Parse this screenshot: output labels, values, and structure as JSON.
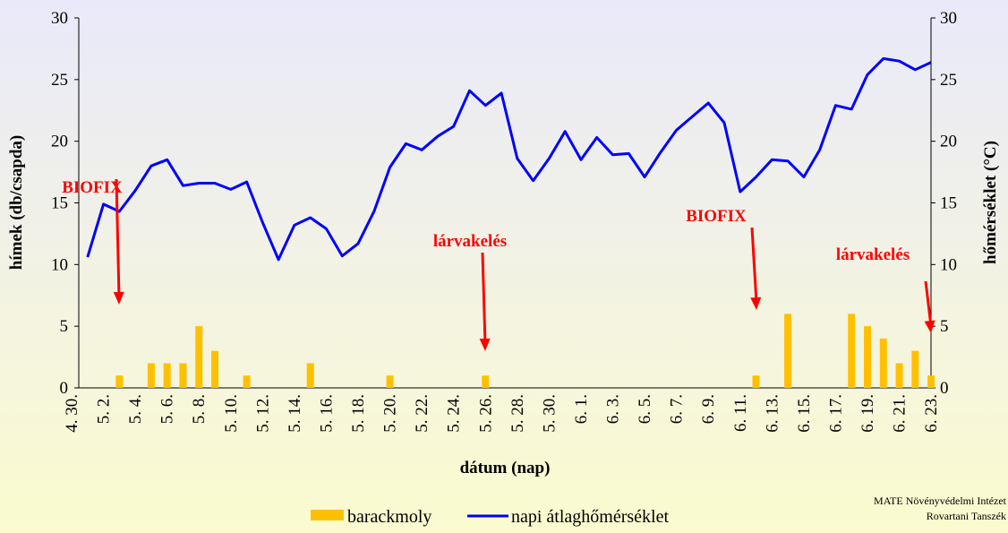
{
  "chart_data": {
    "type": "bar+line",
    "x_label": "dátum (nap)",
    "y_label": "hímek (db/csapda)",
    "y2_label": "hőmérséklet (°C)",
    "categories": [
      "4. 30.",
      null,
      "5. 2.",
      null,
      "5. 4.",
      null,
      "5. 6.",
      null,
      "5. 8.",
      null,
      "5. 10.",
      null,
      "5. 12.",
      null,
      "5. 14.",
      null,
      "5. 16.",
      null,
      "5. 18.",
      null,
      "5. 20.",
      null,
      "5. 22.",
      null,
      "5. 24.",
      null,
      "5. 26.",
      null,
      "5. 28.",
      null,
      "5. 30.",
      null,
      "6. 1.",
      null,
      "6. 3.",
      null,
      "6. 5.",
      null,
      "6. 7.",
      null,
      "6. 9.",
      null,
      "6. 11.",
      null,
      "6. 13.",
      null,
      "6. 15.",
      null,
      "6. 17.",
      null,
      "6. 19.",
      null,
      "6. 21.",
      null,
      "6. 23."
    ],
    "series": [
      {
        "name": "barackmoly",
        "type": "bar",
        "color": "#ffc000",
        "values": [
          0,
          0,
          0,
          1,
          0,
          2,
          2,
          2,
          5,
          3,
          0,
          1,
          0,
          0,
          0,
          2,
          0,
          0,
          0,
          0,
          1,
          0,
          0,
          0,
          0,
          0,
          1,
          0,
          0,
          0,
          0,
          0,
          0,
          0,
          0,
          0,
          0,
          0,
          0,
          0,
          0,
          0,
          0,
          1,
          0,
          6,
          0,
          0,
          0,
          6,
          5,
          4,
          2,
          3,
          1
        ]
      },
      {
        "name": "napi átlaghőmérséklet",
        "type": "line",
        "axis": "y2",
        "color": "#0000ff",
        "values": [
          null,
          10.6,
          14.9,
          14.3,
          16,
          18,
          18.5,
          16.4,
          16.6,
          16.6,
          16.1,
          16.7,
          13.4,
          10.4,
          13.2,
          13.8,
          12.9,
          10.7,
          11.7,
          14.3,
          17.9,
          19.8,
          19.3,
          20.4,
          21.2,
          24.1,
          22.9,
          23.9,
          18.6,
          16.8,
          18.6,
          20.8,
          18.5,
          20.3,
          18.9,
          19,
          17.1,
          19.1,
          20.9,
          22,
          23.1,
          21.5,
          15.9,
          17.1,
          18.5,
          18.4,
          17.1,
          19.3,
          22.9,
          22.6,
          25.4,
          26.7,
          26.5,
          25.8,
          26.4
        ]
      }
    ],
    "ylim": [
      0,
      30
    ],
    "yticks": [
      0,
      5,
      10,
      15,
      20,
      25,
      30
    ],
    "y2lim": [
      0,
      30
    ],
    "y2ticks": [
      0,
      5,
      10,
      15,
      20,
      25,
      30
    ],
    "annotations": [
      "BIOFIX",
      "lárvakelés",
      "BIOFIX",
      "lárvakelés"
    ],
    "annotation_color": "#ff0000",
    "source": [
      "MATE Növényvédelmi Intézet",
      "Rovartani Tanszék"
    ]
  }
}
